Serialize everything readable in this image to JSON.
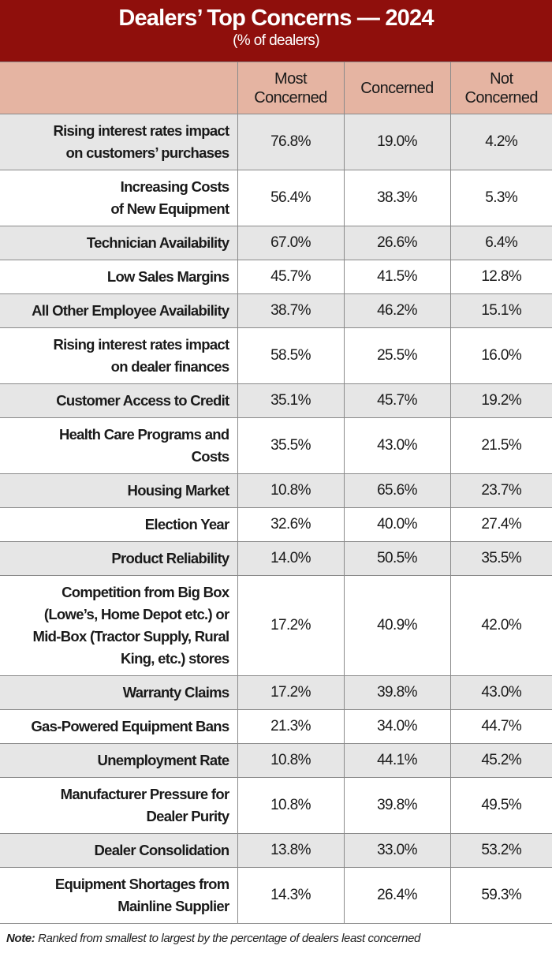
{
  "header": {
    "title": "Dealers’ Top Concerns — 2024",
    "subtitle": "(% of dealers)"
  },
  "note": {
    "label": "Note:",
    "text": " Ranked from smallest to largest by the percentage of dealers least concerned"
  },
  "colors": {
    "header_bg": "#8f0f0c",
    "column_header_bg": "#e5b4a2",
    "alt_row_bg": "#e6e6e6"
  },
  "chart_data": {
    "type": "table",
    "title": "Dealers’ Top Concerns — 2024",
    "subtitle": "(% of dealers)",
    "columns": [
      "",
      "Most Concerned",
      "Concerned",
      "Not Concerned"
    ],
    "rows": [
      {
        "label": "Rising interest rates impact on customers’ purchases",
        "values": [
          "76.8%",
          "19.0%",
          "4.2%"
        ]
      },
      {
        "label": "Increasing Costs of New Equipment",
        "values": [
          "56.4%",
          "38.3%",
          "5.3%"
        ]
      },
      {
        "label": "Technician Availability",
        "values": [
          "67.0%",
          "26.6%",
          "6.4%"
        ]
      },
      {
        "label": "Low Sales Margins",
        "values": [
          "45.7%",
          "41.5%",
          "12.8%"
        ]
      },
      {
        "label": "All Other Employee Availability",
        "values": [
          "38.7%",
          "46.2%",
          "15.1%"
        ]
      },
      {
        "label": "Rising interest rates impact on dealer finances",
        "values": [
          "58.5%",
          "25.5%",
          "16.0%"
        ]
      },
      {
        "label": "Customer Access to Credit",
        "values": [
          "35.1%",
          "45.7%",
          "19.2%"
        ]
      },
      {
        "label": "Health Care Programs and Costs",
        "values": [
          "35.5%",
          "43.0%",
          "21.5%"
        ]
      },
      {
        "label": "Housing Market",
        "values": [
          "10.8%",
          "65.6%",
          "23.7%"
        ]
      },
      {
        "label": "Election Year",
        "values": [
          "32.6%",
          "40.0%",
          "27.4%"
        ]
      },
      {
        "label": "Product Reliability",
        "values": [
          "14.0%",
          "50.5%",
          "35.5%"
        ]
      },
      {
        "label": "Competition from Big Box (Lowe’s, Home Depot etc.) or Mid-Box (Tractor Supply, Rural King, etc.) stores",
        "values": [
          "17.2%",
          "40.9%",
          "42.0%"
        ]
      },
      {
        "label": "Warranty Claims",
        "values": [
          "17.2%",
          "39.8%",
          "43.0%"
        ]
      },
      {
        "label": "Gas-Powered Equipment Bans",
        "values": [
          "21.3%",
          "34.0%",
          "44.7%"
        ]
      },
      {
        "label": "Unemployment Rate",
        "values": [
          "10.8%",
          "44.1%",
          "45.2%"
        ]
      },
      {
        "label": "Manufacturer Pressure for Dealer Purity",
        "values": [
          "10.8%",
          "39.8%",
          "49.5%"
        ]
      },
      {
        "label": "Dealer Consolidation",
        "values": [
          "13.8%",
          "33.0%",
          "53.2%"
        ]
      },
      {
        "label": "Equipment Shortages from Mainline Supplier",
        "values": [
          "14.3%",
          "26.4%",
          "59.3%"
        ]
      }
    ]
  }
}
